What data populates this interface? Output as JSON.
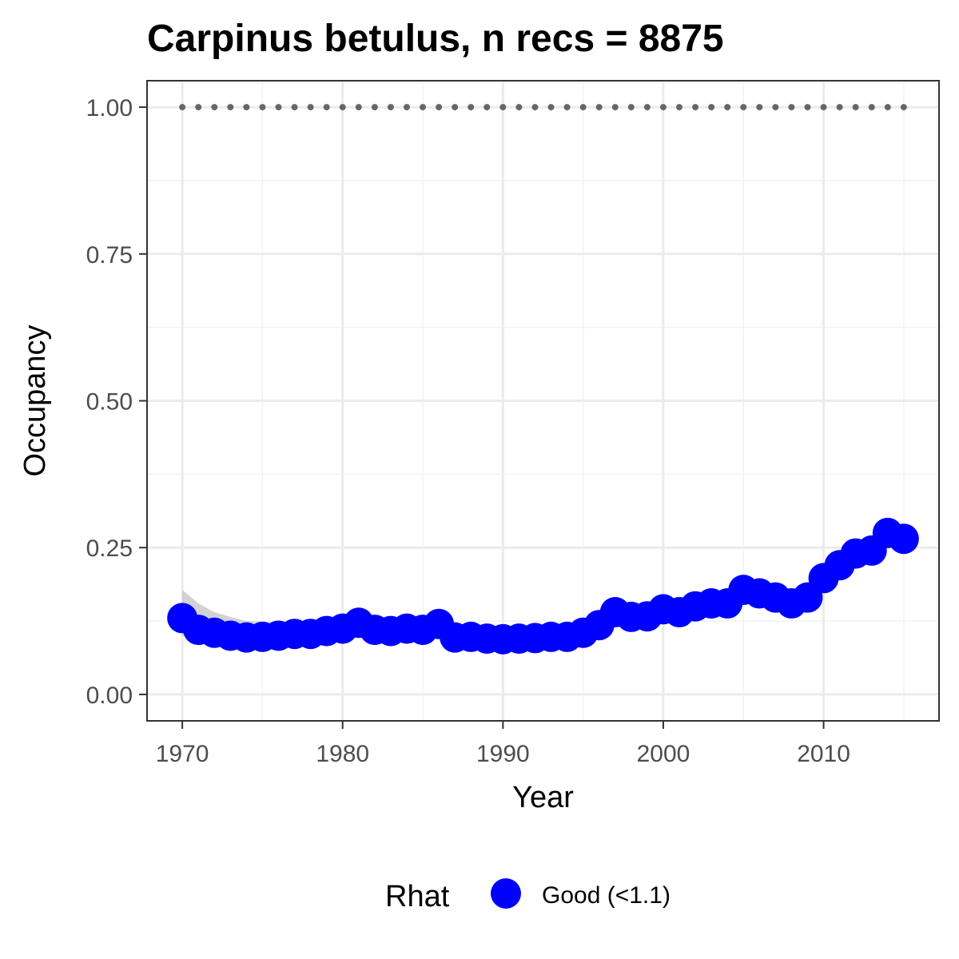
{
  "chart_data": {
    "type": "scatter",
    "title": "Carpinus betulus, n recs = 8875",
    "xlabel": "Year",
    "ylabel": "Occupancy",
    "xlim": [
      1967.8,
      2017.2
    ],
    "ylim": [
      -0.045,
      1.045
    ],
    "x_ticks": [
      1970,
      1980,
      1990,
      2000,
      2010
    ],
    "x_tick_labels": [
      "1970",
      "1980",
      "1990",
      "2000",
      "2010"
    ],
    "y_ticks": [
      0,
      0.25,
      0.5,
      0.75,
      1.0
    ],
    "y_tick_labels": [
      "0.00",
      "0.25",
      "0.50",
      "0.75",
      "1.00"
    ],
    "grid": true,
    "legend": {
      "title": "Rhat",
      "position": "bottom",
      "entries": [
        {
          "label": "Good (<1.1)",
          "color": "#0000ff"
        }
      ]
    },
    "reference_line": {
      "y": 1.0,
      "style": "dotted",
      "color": "#666666"
    },
    "series": [
      {
        "name": "Good (<1.1)",
        "color": "#0000ff",
        "x": [
          1970,
          1971,
          1972,
          1973,
          1974,
          1975,
          1976,
          1977,
          1978,
          1979,
          1980,
          1981,
          1982,
          1983,
          1984,
          1985,
          1986,
          1987,
          1988,
          1989,
          1990,
          1991,
          1992,
          1993,
          1994,
          1995,
          1996,
          1997,
          1998,
          1999,
          2000,
          2001,
          2002,
          2003,
          2004,
          2005,
          2006,
          2007,
          2008,
          2009,
          2010,
          2011,
          2012,
          2013,
          2014,
          2015
        ],
        "y": [
          0.13,
          0.11,
          0.105,
          0.1,
          0.097,
          0.098,
          0.1,
          0.103,
          0.103,
          0.108,
          0.112,
          0.122,
          0.11,
          0.108,
          0.112,
          0.11,
          0.12,
          0.097,
          0.098,
          0.095,
          0.094,
          0.095,
          0.096,
          0.098,
          0.098,
          0.105,
          0.118,
          0.14,
          0.132,
          0.133,
          0.145,
          0.14,
          0.15,
          0.155,
          0.155,
          0.178,
          0.172,
          0.165,
          0.155,
          0.165,
          0.198,
          0.22,
          0.24,
          0.245,
          0.275,
          0.265
        ]
      }
    ],
    "ci_band": {
      "color": "#bfbfbf",
      "x": [
        1970,
        1971,
        1972,
        1973,
        1974,
        1975,
        1976,
        1977,
        1978,
        1979,
        1980,
        1981,
        1982,
        1983,
        1984,
        1985,
        1986,
        1987,
        1988,
        1989,
        1990,
        1991,
        1992,
        1993,
        1994,
        1995,
        1996,
        1997,
        1998,
        1999,
        2000,
        2001,
        2002,
        2003,
        2004,
        2005,
        2006,
        2007,
        2008,
        2009,
        2010,
        2011,
        2012,
        2013,
        2014,
        2015
      ],
      "lower": [
        0.1,
        0.095,
        0.092,
        0.09,
        0.088,
        0.09,
        0.092,
        0.095,
        0.096,
        0.1,
        0.104,
        0.11,
        0.102,
        0.1,
        0.104,
        0.102,
        0.108,
        0.09,
        0.09,
        0.088,
        0.087,
        0.088,
        0.089,
        0.091,
        0.091,
        0.098,
        0.11,
        0.13,
        0.124,
        0.125,
        0.136,
        0.132,
        0.141,
        0.146,
        0.146,
        0.166,
        0.162,
        0.156,
        0.147,
        0.156,
        0.186,
        0.207,
        0.226,
        0.232,
        0.258,
        0.25
      ],
      "upper": [
        0.178,
        0.155,
        0.14,
        0.132,
        0.125,
        0.124,
        0.123,
        0.124,
        0.122,
        0.125,
        0.128,
        0.138,
        0.124,
        0.12,
        0.124,
        0.122,
        0.132,
        0.106,
        0.106,
        0.102,
        0.101,
        0.102,
        0.103,
        0.106,
        0.106,
        0.113,
        0.127,
        0.151,
        0.141,
        0.142,
        0.155,
        0.149,
        0.16,
        0.165,
        0.165,
        0.19,
        0.183,
        0.175,
        0.165,
        0.176,
        0.211,
        0.234,
        0.255,
        0.26,
        0.292,
        0.282
      ]
    }
  }
}
